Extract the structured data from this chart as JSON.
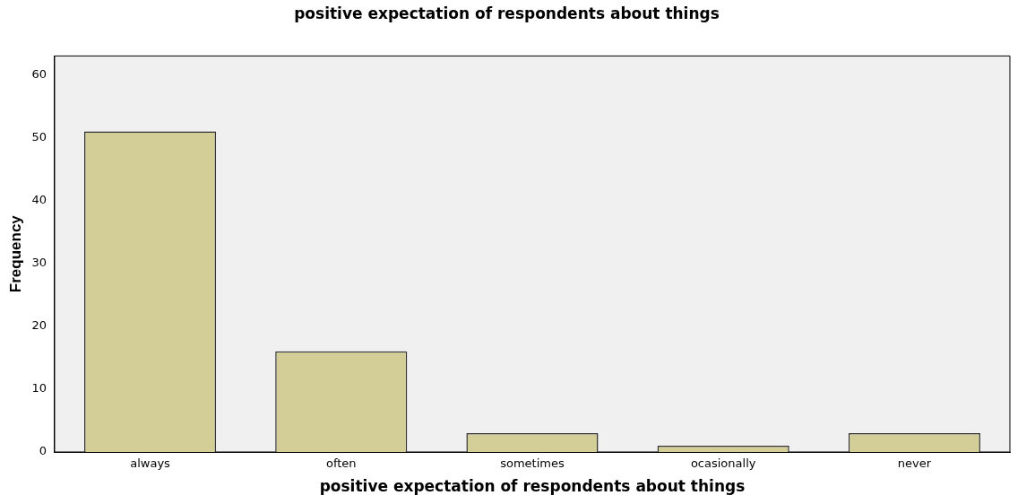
{
  "chart_data": {
    "type": "bar",
    "title": "positive expectation of respondents about things",
    "xlabel": "positive expectation of respondents about things",
    "ylabel": "Frequency",
    "categories": [
      "always",
      "often",
      "sometimes",
      "ocasionally",
      "never"
    ],
    "values": [
      51,
      16,
      3,
      1,
      3
    ],
    "color": "#d3cd97",
    "ylim": [
      0,
      63
    ],
    "yticks": [
      0,
      10,
      20,
      30,
      40,
      50,
      60
    ],
    "grid": false,
    "legend": false
  }
}
